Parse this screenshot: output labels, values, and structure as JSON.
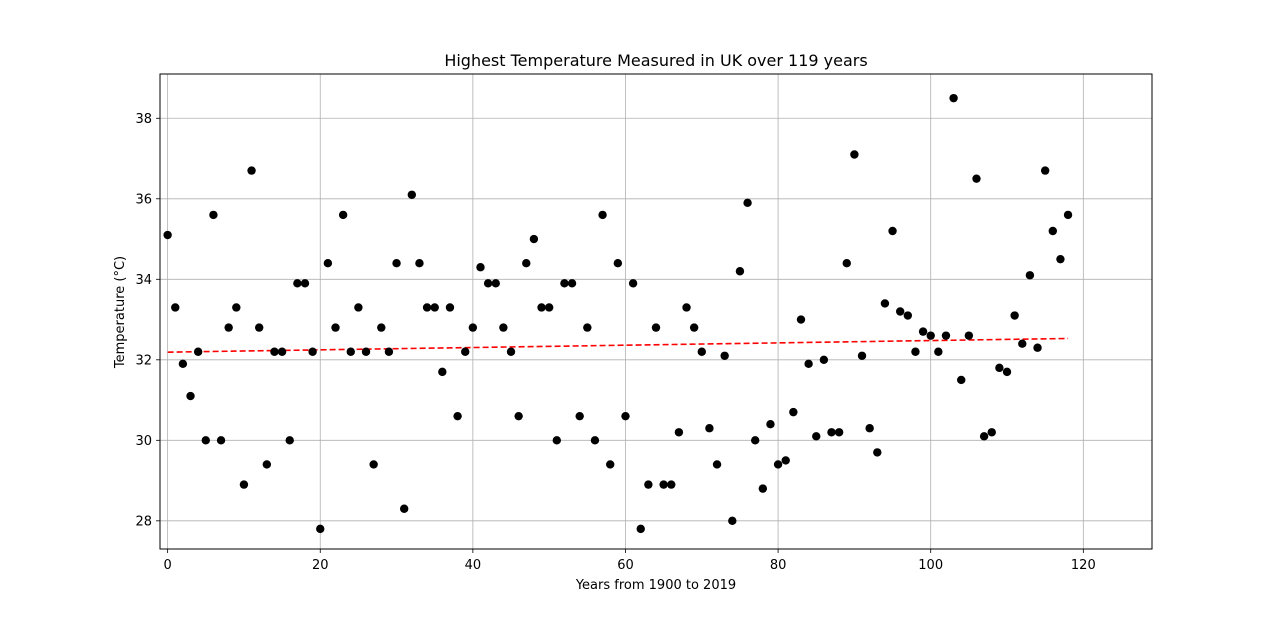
{
  "chart_data": {
    "type": "scatter",
    "title": "Highest Temperature Measured in UK over 119 years",
    "xlabel": "Years from 1900 to 2019",
    "ylabel": "Temperature (°C)",
    "xlim": [
      -1,
      129
    ],
    "ylim": [
      27.3,
      39.1
    ],
    "xticks": [
      0,
      20,
      40,
      60,
      80,
      100,
      120
    ],
    "yticks": [
      28,
      30,
      32,
      34,
      36,
      38
    ],
    "grid": true,
    "colors": {
      "points": "#000000",
      "trend": "#ff0000",
      "grid": "#b0b0b0"
    },
    "series": [
      {
        "kind": "scatter",
        "x": [
          0,
          1,
          2,
          3,
          4,
          5,
          6,
          7,
          8,
          9,
          10,
          11,
          12,
          13,
          14,
          15,
          16,
          17,
          18,
          19,
          20,
          21,
          22,
          23,
          24,
          25,
          26,
          27,
          28,
          29,
          30,
          31,
          32,
          33,
          34,
          35,
          36,
          37,
          38,
          39,
          40,
          41,
          42,
          43,
          44,
          45,
          46,
          47,
          48,
          49,
          50,
          51,
          52,
          53,
          54,
          55,
          56,
          57,
          58,
          59,
          60,
          61,
          62,
          63,
          64,
          65,
          66,
          67,
          68,
          69,
          70,
          71,
          72,
          73,
          74,
          75,
          76,
          77,
          78,
          79,
          80,
          81,
          82,
          83,
          84,
          85,
          86,
          87,
          88,
          89,
          90,
          91,
          92,
          93,
          94,
          95,
          96,
          97,
          98,
          99,
          100,
          101,
          102,
          103,
          104,
          105,
          106,
          107,
          108,
          109,
          110,
          111,
          112,
          113,
          114,
          115,
          116,
          117,
          118
        ],
        "y": [
          35.1,
          33.3,
          31.9,
          31.1,
          32.2,
          30.0,
          35.6,
          30.0,
          32.8,
          33.3,
          28.9,
          36.7,
          32.8,
          29.4,
          32.2,
          32.2,
          30.0,
          33.9,
          33.9,
          32.2,
          27.8,
          34.4,
          32.8,
          35.6,
          32.2,
          33.3,
          32.2,
          29.4,
          32.8,
          32.2,
          34.4,
          28.3,
          36.1,
          34.4,
          33.3,
          33.3,
          31.7,
          33.3,
          30.6,
          32.2,
          32.8,
          34.3,
          33.9,
          33.9,
          32.8,
          32.2,
          30.6,
          34.4,
          35.0,
          33.3,
          33.3,
          30.0,
          33.9,
          33.9,
          30.6,
          32.8,
          30.0,
          35.6,
          29.4,
          34.4,
          30.6,
          33.9,
          27.8,
          28.9,
          32.8,
          28.9,
          28.9,
          30.2,
          33.3,
          32.8,
          32.2,
          30.3,
          29.4,
          32.1,
          28.0,
          34.2,
          35.9,
          30.0,
          28.8,
          30.4,
          29.4,
          29.5,
          30.7,
          33.0,
          31.9,
          30.1,
          32.0,
          30.2,
          30.2,
          34.4,
          37.1,
          32.1,
          30.3,
          29.7,
          33.4,
          35.2,
          33.2,
          33.1,
          32.2,
          32.7,
          32.6,
          32.2,
          32.6,
          38.5,
          31.5,
          32.6,
          36.5,
          30.1,
          30.2,
          31.8,
          31.7,
          33.1,
          32.4,
          34.1,
          32.3,
          36.7,
          35.2,
          34.5,
          35.6
        ]
      },
      {
        "kind": "trend",
        "style": "dashed",
        "x": [
          0,
          118
        ],
        "y": [
          32.19,
          32.53
        ]
      }
    ]
  }
}
